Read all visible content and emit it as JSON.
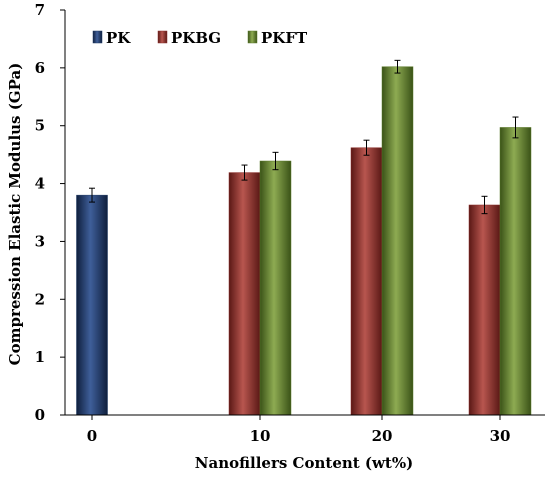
{
  "chart_data": {
    "type": "bar",
    "title": "",
    "xlabel": "Nanofillers Content (wt%)",
    "ylabel": "Compression Elastic Modulus  (GPa)",
    "categories": [
      "0",
      "10",
      "20",
      "30"
    ],
    "ylim": [
      0,
      7
    ],
    "yticks": [
      "0",
      "1",
      "2",
      "3",
      "4",
      "5",
      "6",
      "7"
    ],
    "grid": false,
    "legend_position": "top-left",
    "series": [
      {
        "name": "PK",
        "color": "#1f3864",
        "values": [
          3.8,
          null,
          null,
          null
        ],
        "errors": [
          0.12,
          null,
          null,
          null
        ]
      },
      {
        "name": "PKBG",
        "color": "#8b2e2a",
        "values": [
          null,
          4.19,
          4.62,
          3.63
        ],
        "errors": [
          null,
          0.13,
          0.13,
          0.15
        ]
      },
      {
        "name": "PKFT",
        "color": "#5b7a2a",
        "values": [
          null,
          4.39,
          6.02,
          4.97
        ],
        "errors": [
          null,
          0.15,
          0.11,
          0.18
        ]
      }
    ]
  }
}
